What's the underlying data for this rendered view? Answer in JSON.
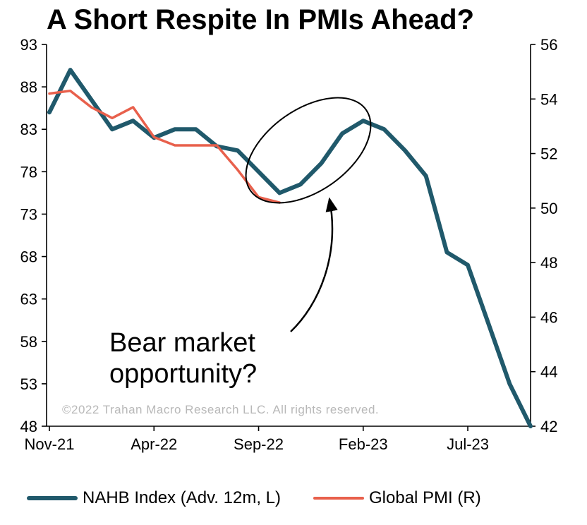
{
  "title": "A Short Respite In PMIs Ahead?",
  "copyright": "©2022 Trahan Macro Research LLC. All rights reserved.",
  "annotation": {
    "line1": "Bear market",
    "line2": "opportunity?"
  },
  "legend": [
    {
      "label": "NAHB Index (Adv. 12m, L)",
      "color": "#20596b",
      "thickness": 6
    },
    {
      "label": "Global PMI (R)",
      "color": "#e8604c",
      "thickness": 4
    }
  ],
  "chart_data": {
    "type": "line",
    "x": [
      "Nov-21",
      "Dec-21",
      "Jan-22",
      "Feb-22",
      "Mar-22",
      "Apr-22",
      "May-22",
      "Jun-22",
      "Jul-22",
      "Aug-22",
      "Sep-22",
      "Oct-22",
      "Nov-22",
      "Dec-22",
      "Jan-23",
      "Feb-23",
      "Mar-23",
      "Apr-23",
      "May-23",
      "Jun-23",
      "Jul-23",
      "Aug-23",
      "Sep-23",
      "Oct-23"
    ],
    "x_tick_labels": [
      "Nov-21",
      "Apr-22",
      "Sep-22",
      "Feb-23",
      "Jul-23"
    ],
    "left_axis": {
      "label": "NAHB Index (Adv. 12m)",
      "range": [
        48,
        93
      ],
      "ticks": [
        93,
        88,
        83,
        78,
        73,
        68,
        63,
        58,
        53,
        48
      ]
    },
    "right_axis": {
      "label": "Global PMI",
      "range": [
        42,
        56
      ],
      "ticks": [
        56,
        54,
        52,
        50,
        48,
        46,
        44,
        42
      ]
    },
    "grid": false,
    "legend_position": "bottom",
    "series": [
      {
        "name": "NAHB Index (Adv. 12m, L)",
        "axis": "left",
        "color": "#20596b",
        "width": 6,
        "values": [
          85,
          90,
          86.5,
          83,
          84,
          82,
          83,
          83,
          81,
          80.5,
          78,
          75.5,
          76.5,
          79,
          82.5,
          84,
          83,
          80.5,
          77.5,
          68.5,
          67,
          60,
          53,
          48
        ]
      },
      {
        "name": "Global PMI (R)",
        "axis": "right",
        "color": "#e8604c",
        "width": 3.5,
        "values": [
          54.2,
          54.3,
          53.7,
          53.3,
          53.7,
          52.6,
          52.3,
          52.3,
          52.3,
          51.4,
          50.4,
          50.2
        ]
      }
    ]
  }
}
